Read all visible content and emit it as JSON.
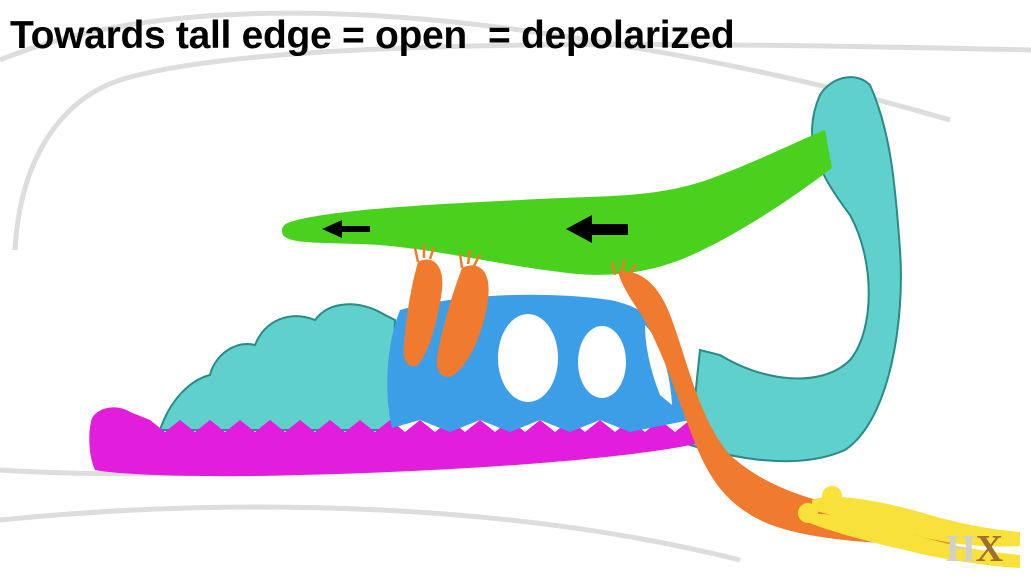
{
  "title": "Towards tall edge = open  = depolarized",
  "logo": {
    "part1": "H",
    "part2": "X"
  },
  "colors": {
    "tectorial_membrane": "#4ad11e",
    "support_cells": "#5fd0cb",
    "outline": "#2a8a86",
    "hair_cell_body": "#3d9ee8",
    "basilar_membrane": "#e21ddb",
    "nerve_fibers": "#f07a2e",
    "axon_terminals": "#f7e13a",
    "arrows": "#000000",
    "background_arcs": "#dddddd"
  },
  "icons": [
    "left-arrow-icon",
    "left-arrow-icon"
  ]
}
